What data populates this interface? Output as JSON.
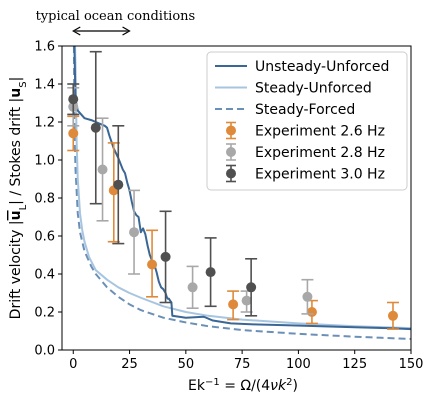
{
  "chart_data": {
    "type": "line",
    "annotation": "typical ocean conditions",
    "annotation_range": [
      0,
      25
    ],
    "xlabel": "Ek⁻¹ = Ω/(4νk²)",
    "ylabel": "Drift velocity |u̅L| / Stokes drift |uS|",
    "xlim": [
      -5,
      150
    ],
    "ylim": [
      0,
      1.6
    ],
    "x_ticks": [
      0,
      25,
      50,
      75,
      100,
      125,
      150
    ],
    "x_tick_labels": [
      "0",
      "25",
      "50",
      "75",
      "100",
      "125",
      "150"
    ],
    "y_ticks": [
      0.0,
      0.2,
      0.4,
      0.6,
      0.8,
      1.0,
      1.2,
      1.4,
      1.6
    ],
    "y_tick_labels": [
      "0.0",
      "0.2",
      "0.4",
      "0.6",
      "0.8",
      "1.0",
      "1.2",
      "1.4",
      "1.6"
    ],
    "grid": false,
    "legend_position": "top-right",
    "series": [
      {
        "name": "Unsteady-Unforced",
        "kind": "line",
        "style": "solid",
        "color": "#3a6795",
        "points": [
          [
            0.5,
            1.6
          ],
          [
            1,
            1.32
          ],
          [
            2,
            1.26
          ],
          [
            5,
            1.22
          ],
          [
            8,
            1.21
          ],
          [
            10,
            1.2
          ],
          [
            12,
            1.19
          ],
          [
            14,
            1.18
          ],
          [
            15,
            1.17
          ],
          [
            16,
            1.13
          ],
          [
            18,
            1.06
          ],
          [
            20,
            1.01
          ],
          [
            21,
            0.98
          ],
          [
            22,
            0.95
          ],
          [
            23,
            0.93
          ],
          [
            24,
            0.88
          ],
          [
            25,
            0.84
          ],
          [
            26,
            0.78
          ],
          [
            27,
            0.73
          ],
          [
            28,
            0.71
          ],
          [
            29,
            0.7
          ],
          [
            29.5,
            0.66
          ],
          [
            30,
            0.62
          ],
          [
            30.5,
            0.63
          ],
          [
            31,
            0.64
          ],
          [
            32,
            0.61
          ],
          [
            33,
            0.55
          ],
          [
            34,
            0.5
          ],
          [
            35,
            0.47
          ],
          [
            36,
            0.45
          ],
          [
            37,
            0.41
          ],
          [
            38,
            0.36
          ],
          [
            39,
            0.33
          ],
          [
            40,
            0.32
          ],
          [
            41,
            0.3
          ],
          [
            41.5,
            0.28
          ],
          [
            42,
            0.27
          ],
          [
            42.5,
            0.27
          ],
          [
            43,
            0.26
          ],
          [
            43.6,
            0.25
          ],
          [
            44,
            0.18
          ],
          [
            50,
            0.17
          ],
          [
            58,
            0.175
          ],
          [
            62,
            0.155
          ],
          [
            70,
            0.14
          ],
          [
            80,
            0.135
          ],
          [
            95,
            0.13
          ],
          [
            110,
            0.125
          ],
          [
            125,
            0.12
          ],
          [
            140,
            0.115
          ],
          [
            150,
            0.11
          ]
        ]
      },
      {
        "name": "Steady-Unforced",
        "kind": "line",
        "style": "solid",
        "color": "#a8c5e0",
        "points": [
          [
            0.8,
            1.6
          ],
          [
            1,
            1.5
          ],
          [
            1.5,
            1.1
          ],
          [
            2,
            0.9
          ],
          [
            3,
            0.72
          ],
          [
            4,
            0.63
          ],
          [
            5,
            0.57
          ],
          [
            7,
            0.49
          ],
          [
            10,
            0.42
          ],
          [
            15,
            0.37
          ],
          [
            20,
            0.33
          ],
          [
            25,
            0.3
          ],
          [
            30,
            0.275
          ],
          [
            40,
            0.23
          ],
          [
            50,
            0.2
          ],
          [
            60,
            0.18
          ],
          [
            75,
            0.16
          ],
          [
            100,
            0.14
          ],
          [
            125,
            0.125
          ],
          [
            150,
            0.115
          ]
        ]
      },
      {
        "name": "Steady-Forced",
        "kind": "line",
        "style": "dashed",
        "color": "#6b90b8",
        "points": [
          [
            0.3,
            1.6
          ],
          [
            0.5,
            1.2
          ],
          [
            1,
            0.95
          ],
          [
            2,
            0.72
          ],
          [
            3,
            0.62
          ],
          [
            5,
            0.52
          ],
          [
            8,
            0.44
          ],
          [
            10,
            0.4
          ],
          [
            15,
            0.33
          ],
          [
            20,
            0.28
          ],
          [
            25,
            0.24
          ],
          [
            30,
            0.21
          ],
          [
            40,
            0.17
          ],
          [
            50,
            0.145
          ],
          [
            60,
            0.125
          ],
          [
            75,
            0.105
          ],
          [
            100,
            0.085
          ],
          [
            125,
            0.07
          ],
          [
            150,
            0.058
          ]
        ]
      },
      {
        "name": "Experiment 2.6 Hz",
        "kind": "errorbar",
        "color": "#de8a3a",
        "points": [
          {
            "x": 0,
            "y": 1.14,
            "err_low": 0.09,
            "err_high": 0.09
          },
          {
            "x": 18,
            "y": 0.84,
            "err_low": 0.27,
            "err_high": 0.25
          },
          {
            "x": 35,
            "y": 0.45,
            "err_low": 0.17,
            "err_high": 0.18
          },
          {
            "x": 71,
            "y": 0.24,
            "err_low": 0.08,
            "err_high": 0.07
          },
          {
            "x": 106,
            "y": 0.2,
            "err_low": 0.06,
            "err_high": 0.06
          },
          {
            "x": 142,
            "y": 0.18,
            "err_low": 0.07,
            "err_high": 0.07
          }
        ]
      },
      {
        "name": "Experiment 2.8 Hz",
        "kind": "errorbar",
        "color": "#a8a8a8",
        "points": [
          {
            "x": 0,
            "y": 1.28,
            "err_low": 0.1,
            "err_high": 0.1
          },
          {
            "x": 13,
            "y": 0.95,
            "err_low": 0.27,
            "err_high": 0.27
          },
          {
            "x": 27,
            "y": 0.62,
            "err_low": 0.22,
            "err_high": 0.22
          },
          {
            "x": 53,
            "y": 0.33,
            "err_low": 0.11,
            "err_high": 0.11
          },
          {
            "x": 77,
            "y": 0.26,
            "err_low": 0.06,
            "err_high": 0.05
          },
          {
            "x": 104,
            "y": 0.28,
            "err_low": 0.09,
            "err_high": 0.09
          }
        ]
      },
      {
        "name": "Experiment 3.0 Hz",
        "kind": "errorbar",
        "color": "#505050",
        "points": [
          {
            "x": 0,
            "y": 1.32,
            "err_low": 0.08,
            "err_high": 0.08
          },
          {
            "x": 10,
            "y": 1.17,
            "err_low": 0.4,
            "err_high": 0.4
          },
          {
            "x": 20,
            "y": 0.87,
            "err_low": 0.31,
            "err_high": 0.31
          },
          {
            "x": 41,
            "y": 0.49,
            "err_low": 0.24,
            "err_high": 0.24
          },
          {
            "x": 61,
            "y": 0.41,
            "err_low": 0.18,
            "err_high": 0.18
          },
          {
            "x": 79,
            "y": 0.33,
            "err_low": 0.15,
            "err_high": 0.15
          }
        ]
      }
    ]
  }
}
